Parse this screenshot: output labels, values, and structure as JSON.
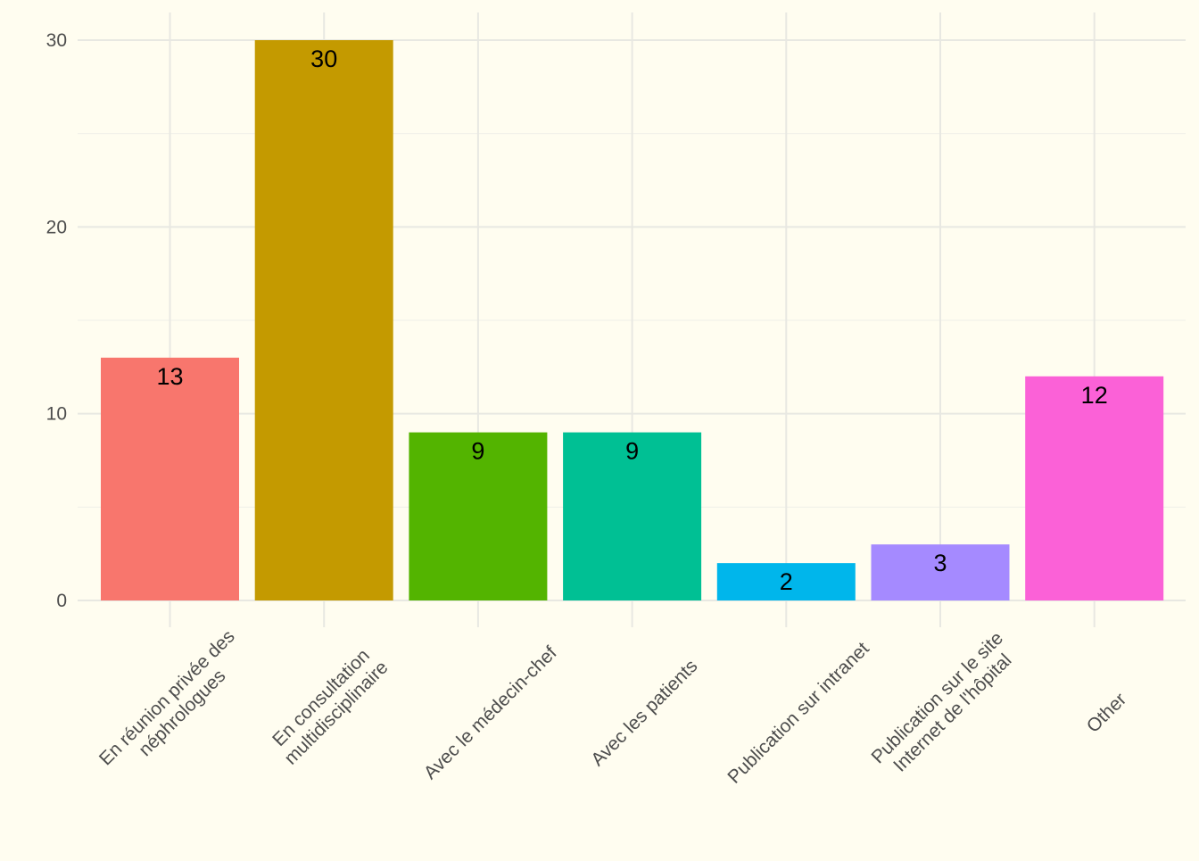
{
  "chart_data": {
    "type": "bar",
    "title": "",
    "xlabel": "",
    "ylabel": "",
    "categories": [
      [
        "En réunion privée des",
        "néphrologues"
      ],
      [
        "En consultation",
        "multidisciplinaire"
      ],
      [
        "Avec le médecin-chef"
      ],
      [
        "Avec les patients"
      ],
      [
        "Publication sur intranet"
      ],
      [
        "Publication sur le site",
        "Internet de l'hôpital"
      ],
      [
        "Other"
      ]
    ],
    "values": [
      13,
      30,
      9,
      9,
      2,
      3,
      12
    ],
    "colors": [
      "#F8766D",
      "#C49A00",
      "#53B400",
      "#00C094",
      "#00B6EB",
      "#A58AFF",
      "#FB61D7"
    ],
    "ylim": [
      0,
      30
    ],
    "yticks": [
      0,
      10,
      20,
      30
    ],
    "grid": true,
    "legend": "none",
    "background": "#FFFDF0"
  }
}
